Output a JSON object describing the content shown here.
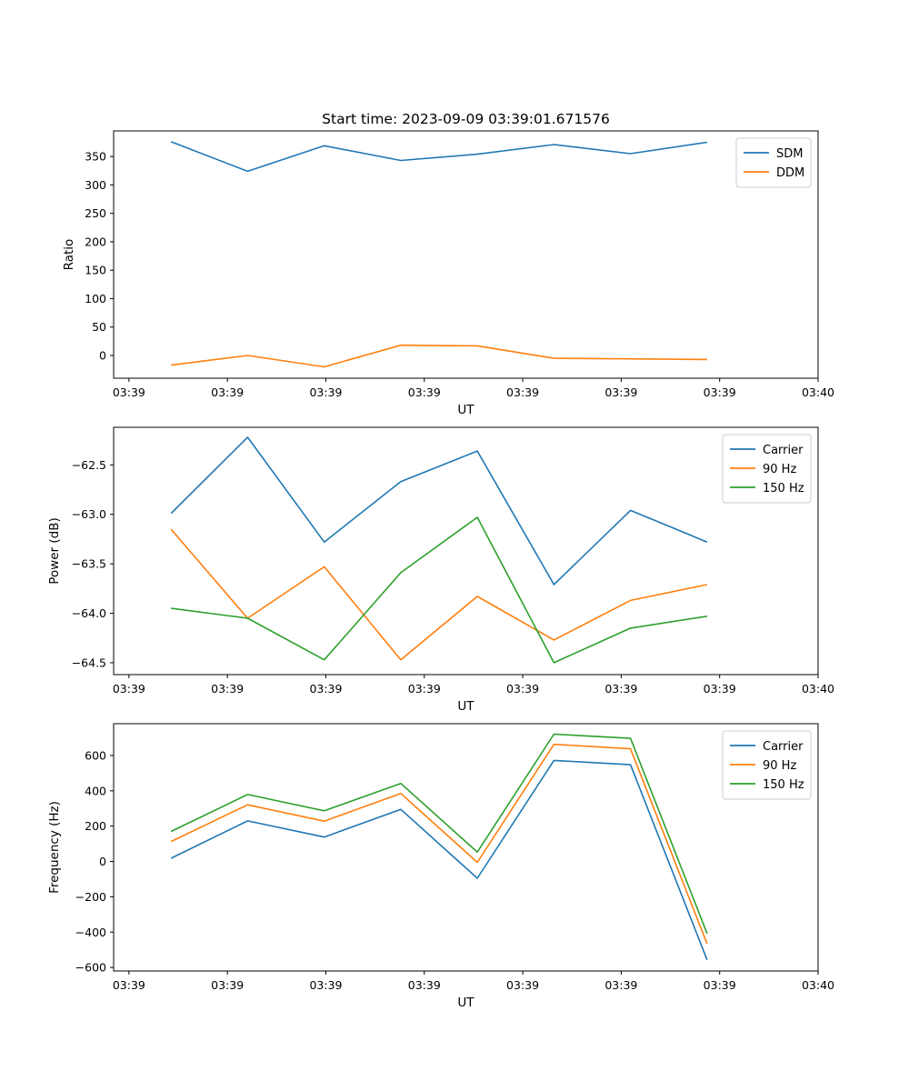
{
  "chart_data": [
    {
      "type": "line",
      "title": "Start time: 2023-09-09 03:39:01.671576",
      "xlabel": "UT",
      "ylabel": "Ratio",
      "x_tick_labels": [
        "03:39",
        "03:39",
        "03:39",
        "03:39",
        "03:39",
        "03:39",
        "03:39",
        "03:40"
      ],
      "y_ticks": [
        0,
        50,
        100,
        150,
        200,
        250,
        300,
        350
      ],
      "xlim": [
        -0.2,
        9.0
      ],
      "ylim": [
        -40,
        395
      ],
      "x": [
        0.55,
        1.55,
        2.55,
        3.55,
        4.55,
        5.55,
        6.55,
        7.55
      ],
      "series": [
        {
          "name": "SDM",
          "color": "#1f77b4",
          "values": [
            376,
            324,
            369,
            343,
            354,
            371,
            355,
            375
          ]
        },
        {
          "name": "DDM",
          "color": "#ff7f0e",
          "values": [
            -17,
            0,
            -20,
            18,
            17,
            -5,
            -6,
            -7
          ]
        }
      ],
      "legend": "top-right",
      "grid": false
    },
    {
      "type": "line",
      "title": "",
      "xlabel": "UT",
      "ylabel": "Power (dB)",
      "x_tick_labels": [
        "03:39",
        "03:39",
        "03:39",
        "03:39",
        "03:39",
        "03:39",
        "03:39",
        "03:40"
      ],
      "y_ticks": [
        -64.5,
        -64.0,
        -63.5,
        -63.0,
        -62.5
      ],
      "y_tick_labels": [
        "−64.5",
        "−64.0",
        "−63.5",
        "−63.0",
        "−62.5"
      ],
      "xlim": [
        -0.2,
        9.0
      ],
      "ylim": [
        -64.62,
        -62.12
      ],
      "x": [
        0.55,
        1.55,
        2.55,
        3.55,
        4.55,
        5.55,
        6.55,
        7.55
      ],
      "series": [
        {
          "name": "Carrier",
          "color": "#1f77b4",
          "values": [
            -62.99,
            -62.22,
            -63.28,
            -62.67,
            -62.36,
            -63.71,
            -62.96,
            -63.28
          ]
        },
        {
          "name": "90 Hz",
          "color": "#ff7f0e",
          "values": [
            -63.15,
            -64.05,
            -63.53,
            -64.47,
            -63.83,
            -64.27,
            -63.87,
            -63.71
          ]
        },
        {
          "name": "150 Hz",
          "color": "#2ca02c",
          "values": [
            -63.95,
            -64.05,
            -64.47,
            -63.59,
            -63.03,
            -64.5,
            -64.15,
            -64.03
          ]
        }
      ],
      "legend": "top-right",
      "grid": false
    },
    {
      "type": "line",
      "title": "",
      "xlabel": "UT",
      "ylabel": "Frequency (Hz)",
      "x_tick_labels": [
        "03:39",
        "03:39",
        "03:39",
        "03:39",
        "03:39",
        "03:39",
        "03:39",
        "03:40"
      ],
      "y_ticks": [
        -600,
        -400,
        -200,
        0,
        200,
        400,
        600
      ],
      "y_tick_labels": [
        "−600",
        "−400",
        "−200",
        "0",
        "200",
        "400",
        "600"
      ],
      "xlim": [
        -0.2,
        9.0
      ],
      "ylim": [
        -620,
        780
      ],
      "x": [
        0.55,
        1.55,
        2.55,
        3.55,
        4.55,
        5.55,
        6.55,
        7.55
      ],
      "series": [
        {
          "name": "Carrier",
          "color": "#1f77b4",
          "values": [
            18,
            230,
            138,
            295,
            -95,
            572,
            548,
            -557
          ]
        },
        {
          "name": "90 Hz",
          "color": "#ff7f0e",
          "values": [
            113,
            321,
            228,
            385,
            -5,
            663,
            638,
            -466
          ]
        },
        {
          "name": "150 Hz",
          "color": "#2ca02c",
          "values": [
            170,
            379,
            287,
            442,
            53,
            721,
            697,
            -408
          ]
        }
      ],
      "legend": "top-right",
      "grid": false
    }
  ]
}
